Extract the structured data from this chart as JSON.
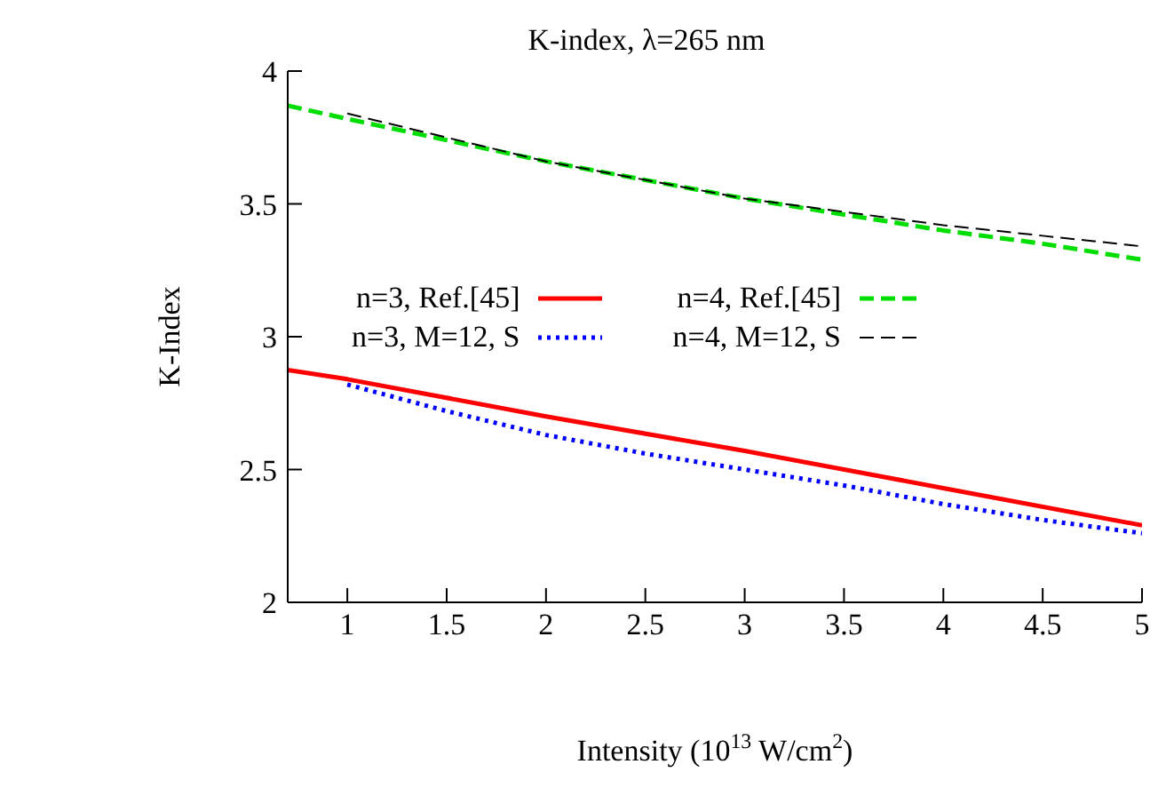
{
  "chart_data": {
    "type": "line",
    "title": "K-index, λ=265 nm",
    "xlabel": "Intensity (10$^{13}$ W/cm$^{2}$)",
    "ylabel": "K-Index",
    "xlim": [
      0.7,
      5
    ],
    "xticks": [
      1,
      1.5,
      2,
      2.5,
      3,
      3.5,
      4,
      4.5,
      5
    ],
    "ylim": [
      2,
      4
    ],
    "yticks": [
      2,
      2.5,
      3,
      3.5,
      4
    ],
    "grid": false,
    "legend": "center",
    "marker": "none",
    "series": [
      {
        "name": "n=3, Ref.[45]",
        "color": "#ff0000",
        "line_style": "solid",
        "x": [
          0.7,
          1,
          2,
          3,
          4,
          5
        ],
        "values": [
          2.875,
          2.84,
          2.7,
          2.57,
          2.43,
          2.29
        ]
      },
      {
        "name": "n=4, Ref.[45]",
        "color": "#00dd00",
        "line_style": "dashed",
        "x": [
          0.7,
          1,
          1.5,
          2,
          2.5,
          3,
          3.5,
          4,
          4.5,
          5
        ],
        "values": [
          3.87,
          3.82,
          3.74,
          3.66,
          3.59,
          3.52,
          3.46,
          3.4,
          3.35,
          3.29
        ]
      },
      {
        "name": "n=3, M=12, S",
        "color": "#0000ff",
        "line_style": "dotted",
        "x": [
          1,
          1.5,
          2,
          2.5,
          3,
          3.5,
          4,
          4.5,
          5
        ],
        "values": [
          2.82,
          2.72,
          2.63,
          2.56,
          2.5,
          2.44,
          2.37,
          2.31,
          2.26
        ]
      },
      {
        "name": "n=4, M=12, S",
        "color": "#000000",
        "line_style": "dashed",
        "x": [
          1,
          1.5,
          2,
          2.5,
          3,
          3.5,
          4,
          4.5,
          5
        ],
        "values": [
          3.84,
          3.75,
          3.66,
          3.59,
          3.52,
          3.47,
          3.42,
          3.38,
          3.34
        ]
      }
    ]
  }
}
